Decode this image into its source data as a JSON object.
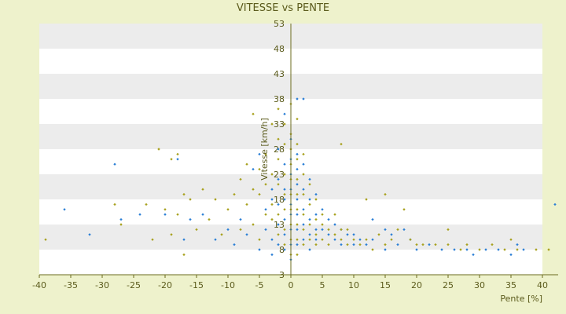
{
  "chart_data": {
    "type": "scatter",
    "title": "VITESSE vs PENTE",
    "xlabel": "Pente [%]",
    "ylabel": "Vitesse [km/h]",
    "xlim": [
      -40,
      40
    ],
    "ylim": [
      3,
      53
    ],
    "x_ticks": [
      "-40",
      "-35",
      "-30",
      "-25",
      "-20",
      "-15",
      "-10",
      "-5",
      "0",
      "5",
      "10",
      "15",
      "20",
      "25",
      "30",
      "35",
      "40"
    ],
    "y_ticks": [
      "3",
      "8",
      "13",
      "18",
      "23",
      "28",
      "33",
      "38",
      "43",
      "48",
      "53"
    ],
    "grid": "horizontal bands",
    "legend": "none",
    "colors": {
      "background": "#eef2cc",
      "band_light": "#ffffff",
      "band_dark": "#ececec",
      "axis": "#6b6b1e",
      "text": "#5b5b1c",
      "series_1": "#2b7fd6",
      "series_2": "#a8a11e"
    },
    "series": [
      {
        "points": [
          [
            -36,
            16
          ],
          [
            -32,
            11
          ],
          [
            -28,
            25
          ],
          [
            -27,
            14
          ],
          [
            -24,
            15
          ],
          [
            -20,
            15
          ],
          [
            -18,
            26
          ],
          [
            -17,
            10
          ],
          [
            -16,
            14
          ],
          [
            -14,
            15
          ],
          [
            -12,
            10
          ],
          [
            -10,
            12
          ],
          [
            -9,
            9
          ],
          [
            -8,
            14
          ],
          [
            -7,
            11
          ],
          [
            -6,
            24
          ],
          [
            -5,
            27
          ],
          [
            -5,
            8
          ],
          [
            -4,
            16
          ],
          [
            -4,
            12
          ],
          [
            -3,
            20
          ],
          [
            -3,
            18
          ],
          [
            -3,
            10
          ],
          [
            -3,
            7
          ],
          [
            -2,
            28
          ],
          [
            -2,
            22
          ],
          [
            -2,
            17
          ],
          [
            -2,
            13
          ],
          [
            -2,
            9
          ],
          [
            -1,
            35
          ],
          [
            -1,
            25
          ],
          [
            -1,
            20
          ],
          [
            -1,
            18
          ],
          [
            -1,
            14
          ],
          [
            -1,
            11
          ],
          [
            -1,
            8
          ],
          [
            0,
            30
          ],
          [
            0,
            26
          ],
          [
            0,
            23
          ],
          [
            0,
            20
          ],
          [
            0,
            17
          ],
          [
            0,
            15
          ],
          [
            0,
            12
          ],
          [
            0,
            9
          ],
          [
            0,
            6
          ],
          [
            1,
            27
          ],
          [
            1,
            24
          ],
          [
            1,
            21
          ],
          [
            1,
            18
          ],
          [
            1,
            15
          ],
          [
            1,
            12
          ],
          [
            1,
            9
          ],
          [
            1,
            38
          ],
          [
            2,
            25
          ],
          [
            2,
            20
          ],
          [
            2,
            16
          ],
          [
            2,
            13
          ],
          [
            2,
            10
          ],
          [
            2,
            38
          ],
          [
            3,
            22
          ],
          [
            3,
            18
          ],
          [
            3,
            14
          ],
          [
            3,
            11
          ],
          [
            3,
            8
          ],
          [
            4,
            19
          ],
          [
            4,
            15
          ],
          [
            4,
            12
          ],
          [
            4,
            10
          ],
          [
            5,
            16
          ],
          [
            5,
            12
          ],
          [
            6,
            14
          ],
          [
            6,
            11
          ],
          [
            7,
            13
          ],
          [
            7,
            10
          ],
          [
            8,
            12
          ],
          [
            8,
            9
          ],
          [
            9,
            11
          ],
          [
            10,
            11
          ],
          [
            10,
            9
          ],
          [
            11,
            10
          ],
          [
            12,
            9
          ],
          [
            13,
            14
          ],
          [
            13,
            10
          ],
          [
            15,
            12
          ],
          [
            15,
            8
          ],
          [
            16,
            11
          ],
          [
            17,
            9
          ],
          [
            18,
            12
          ],
          [
            19,
            10
          ],
          [
            20,
            8
          ],
          [
            22,
            9
          ],
          [
            24,
            8
          ],
          [
            26,
            8
          ],
          [
            28,
            8
          ],
          [
            29,
            7
          ],
          [
            31,
            8
          ],
          [
            33,
            8
          ],
          [
            35,
            7
          ],
          [
            36,
            9
          ],
          [
            37,
            8
          ],
          [
            42,
            17
          ]
        ]
      },
      {
        "points": [
          [
            -39,
            10
          ],
          [
            -28,
            17
          ],
          [
            -27,
            13
          ],
          [
            -23,
            17
          ],
          [
            -22,
            10
          ],
          [
            -21,
            28
          ],
          [
            -20,
            16
          ],
          [
            -19,
            11
          ],
          [
            -19,
            26
          ],
          [
            -18,
            27
          ],
          [
            -18,
            15
          ],
          [
            -17,
            19
          ],
          [
            -17,
            7
          ],
          [
            -16,
            18
          ],
          [
            -15,
            12
          ],
          [
            -14,
            20
          ],
          [
            -13,
            14
          ],
          [
            -12,
            18
          ],
          [
            -11,
            11
          ],
          [
            -10,
            16
          ],
          [
            -9,
            19
          ],
          [
            -8,
            22
          ],
          [
            -8,
            12
          ],
          [
            -7,
            25
          ],
          [
            -7,
            17
          ],
          [
            -6,
            13
          ],
          [
            -6,
            20
          ],
          [
            -6,
            35
          ],
          [
            -5,
            19
          ],
          [
            -5,
            24
          ],
          [
            -5,
            10
          ],
          [
            -4,
            27
          ],
          [
            -4,
            15
          ],
          [
            -4,
            21
          ],
          [
            -3,
            33
          ],
          [
            -3,
            23
          ],
          [
            -3,
            14
          ],
          [
            -3,
            17
          ],
          [
            -2,
            36
          ],
          [
            -2,
            30
          ],
          [
            -2,
            26
          ],
          [
            -2,
            21
          ],
          [
            -2,
            15
          ],
          [
            -2,
            11
          ],
          [
            -1,
            33
          ],
          [
            -1,
            29
          ],
          [
            -1,
            23
          ],
          [
            -1,
            19
          ],
          [
            -1,
            16
          ],
          [
            -1,
            12
          ],
          [
            -1,
            9
          ],
          [
            0,
            37
          ],
          [
            0,
            31
          ],
          [
            0,
            28
          ],
          [
            0,
            25
          ],
          [
            0,
            22
          ],
          [
            0,
            19
          ],
          [
            0,
            16
          ],
          [
            0,
            13
          ],
          [
            0,
            10
          ],
          [
            0,
            7
          ],
          [
            1,
            34
          ],
          [
            1,
            29
          ],
          [
            1,
            26
          ],
          [
            1,
            22
          ],
          [
            1,
            19
          ],
          [
            1,
            16
          ],
          [
            1,
            13
          ],
          [
            1,
            10
          ],
          [
            1,
            7
          ],
          [
            2,
            27
          ],
          [
            2,
            23
          ],
          [
            2,
            19
          ],
          [
            2,
            15
          ],
          [
            2,
            12
          ],
          [
            2,
            9
          ],
          [
            3,
            21
          ],
          [
            3,
            17
          ],
          [
            3,
            13
          ],
          [
            3,
            10
          ],
          [
            4,
            18
          ],
          [
            4,
            14
          ],
          [
            4,
            11
          ],
          [
            4,
            9
          ],
          [
            5,
            15
          ],
          [
            5,
            13
          ],
          [
            5,
            10
          ],
          [
            6,
            12
          ],
          [
            6,
            9
          ],
          [
            7,
            15
          ],
          [
            7,
            11
          ],
          [
            8,
            29
          ],
          [
            8,
            12
          ],
          [
            8,
            10
          ],
          [
            9,
            12
          ],
          [
            9,
            9
          ],
          [
            10,
            10
          ],
          [
            11,
            9
          ],
          [
            12,
            18
          ],
          [
            12,
            10
          ],
          [
            13,
            8
          ],
          [
            14,
            11
          ],
          [
            15,
            19
          ],
          [
            15,
            9
          ],
          [
            16,
            10
          ],
          [
            17,
            12
          ],
          [
            18,
            16
          ],
          [
            19,
            10
          ],
          [
            20,
            9
          ],
          [
            21,
            9
          ],
          [
            23,
            9
          ],
          [
            25,
            9
          ],
          [
            25,
            12
          ],
          [
            27,
            8
          ],
          [
            28,
            9
          ],
          [
            30,
            8
          ],
          [
            32,
            9
          ],
          [
            34,
            8
          ],
          [
            35,
            10
          ],
          [
            36,
            8
          ],
          [
            39,
            8
          ],
          [
            41,
            8
          ]
        ]
      }
    ]
  }
}
